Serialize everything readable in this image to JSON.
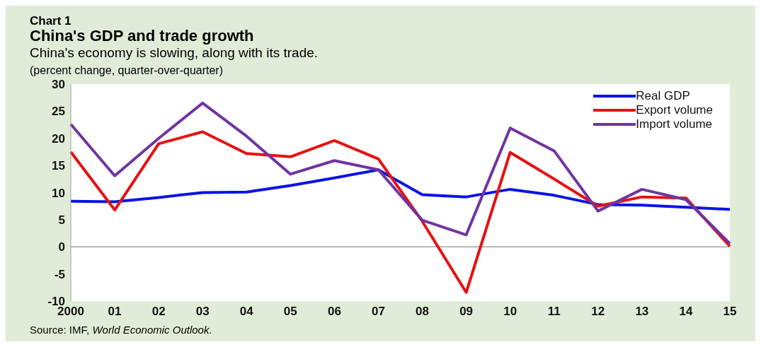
{
  "chart_data": {
    "type": "line",
    "title": "China's GDP and trade growth",
    "subtitle": "China's economy is slowing, along with its trade.",
    "ylabel": "(percent change, quarter-over-quarter)",
    "annotations": [
      "Chart 1",
      "Source:  IMF, World Economic Outlook."
    ],
    "categories": [
      "2000",
      "01",
      "02",
      "03",
      "04",
      "05",
      "06",
      "07",
      "08",
      "09",
      "10",
      "11",
      "12",
      "13",
      "14",
      "15"
    ],
    "series": [
      {
        "name": "Real GDP",
        "color": "#0a14e6",
        "values": [
          8.4,
          8.3,
          9.1,
          10.0,
          10.1,
          11.3,
          12.7,
          14.2,
          9.6,
          9.2,
          10.6,
          9.5,
          7.8,
          7.7,
          7.3,
          6.9
        ]
      },
      {
        "name": "Export volume",
        "color": "#e81010",
        "values": [
          17.5,
          6.8,
          19.0,
          21.2,
          17.2,
          16.6,
          19.6,
          16.2,
          4.7,
          -8.4,
          17.4,
          12.5,
          7.5,
          9.2,
          9.0,
          0.1
        ]
      },
      {
        "name": "Import volume",
        "color": "#7035a0",
        "values": [
          22.6,
          13.1,
          20.0,
          26.5,
          20.4,
          13.4,
          15.9,
          14.2,
          4.9,
          2.2,
          21.9,
          17.7,
          6.6,
          10.6,
          8.7,
          0.6
        ]
      }
    ],
    "ylim": [
      -10,
      30
    ],
    "yticks": [
      -10,
      -5,
      0,
      5,
      10,
      15,
      20,
      25,
      30
    ],
    "grid": false,
    "legend": "top right",
    "marker": "none",
    "line_style": "solid",
    "ref_lines": [
      {
        "axis": "y",
        "value": 0,
        "color": "#a0a0a0"
      }
    ]
  }
}
